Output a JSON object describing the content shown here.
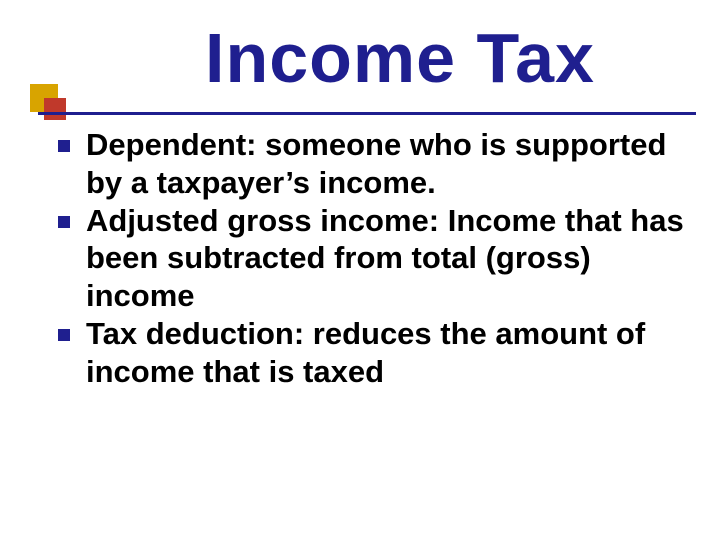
{
  "slide": {
    "title": "Income Tax",
    "title_color": "#1f1f8f",
    "title_fontsize": 70,
    "underline_color": "#1f1f8f",
    "underline_thickness": 3,
    "decor_outer_color": "#d8a400",
    "decor_inner_color": "#c0392b",
    "body_color": "#000000",
    "body_fontsize": 31,
    "bullet_color": "#1f1f8f",
    "background_color": "#ffffff",
    "items": [
      "Dependent: someone who is supported by a taxpayer’s income.",
      "Adjusted gross income: Income that has been subtracted from total (gross) income",
      "Tax deduction: reduces the amount of income that is taxed"
    ]
  }
}
